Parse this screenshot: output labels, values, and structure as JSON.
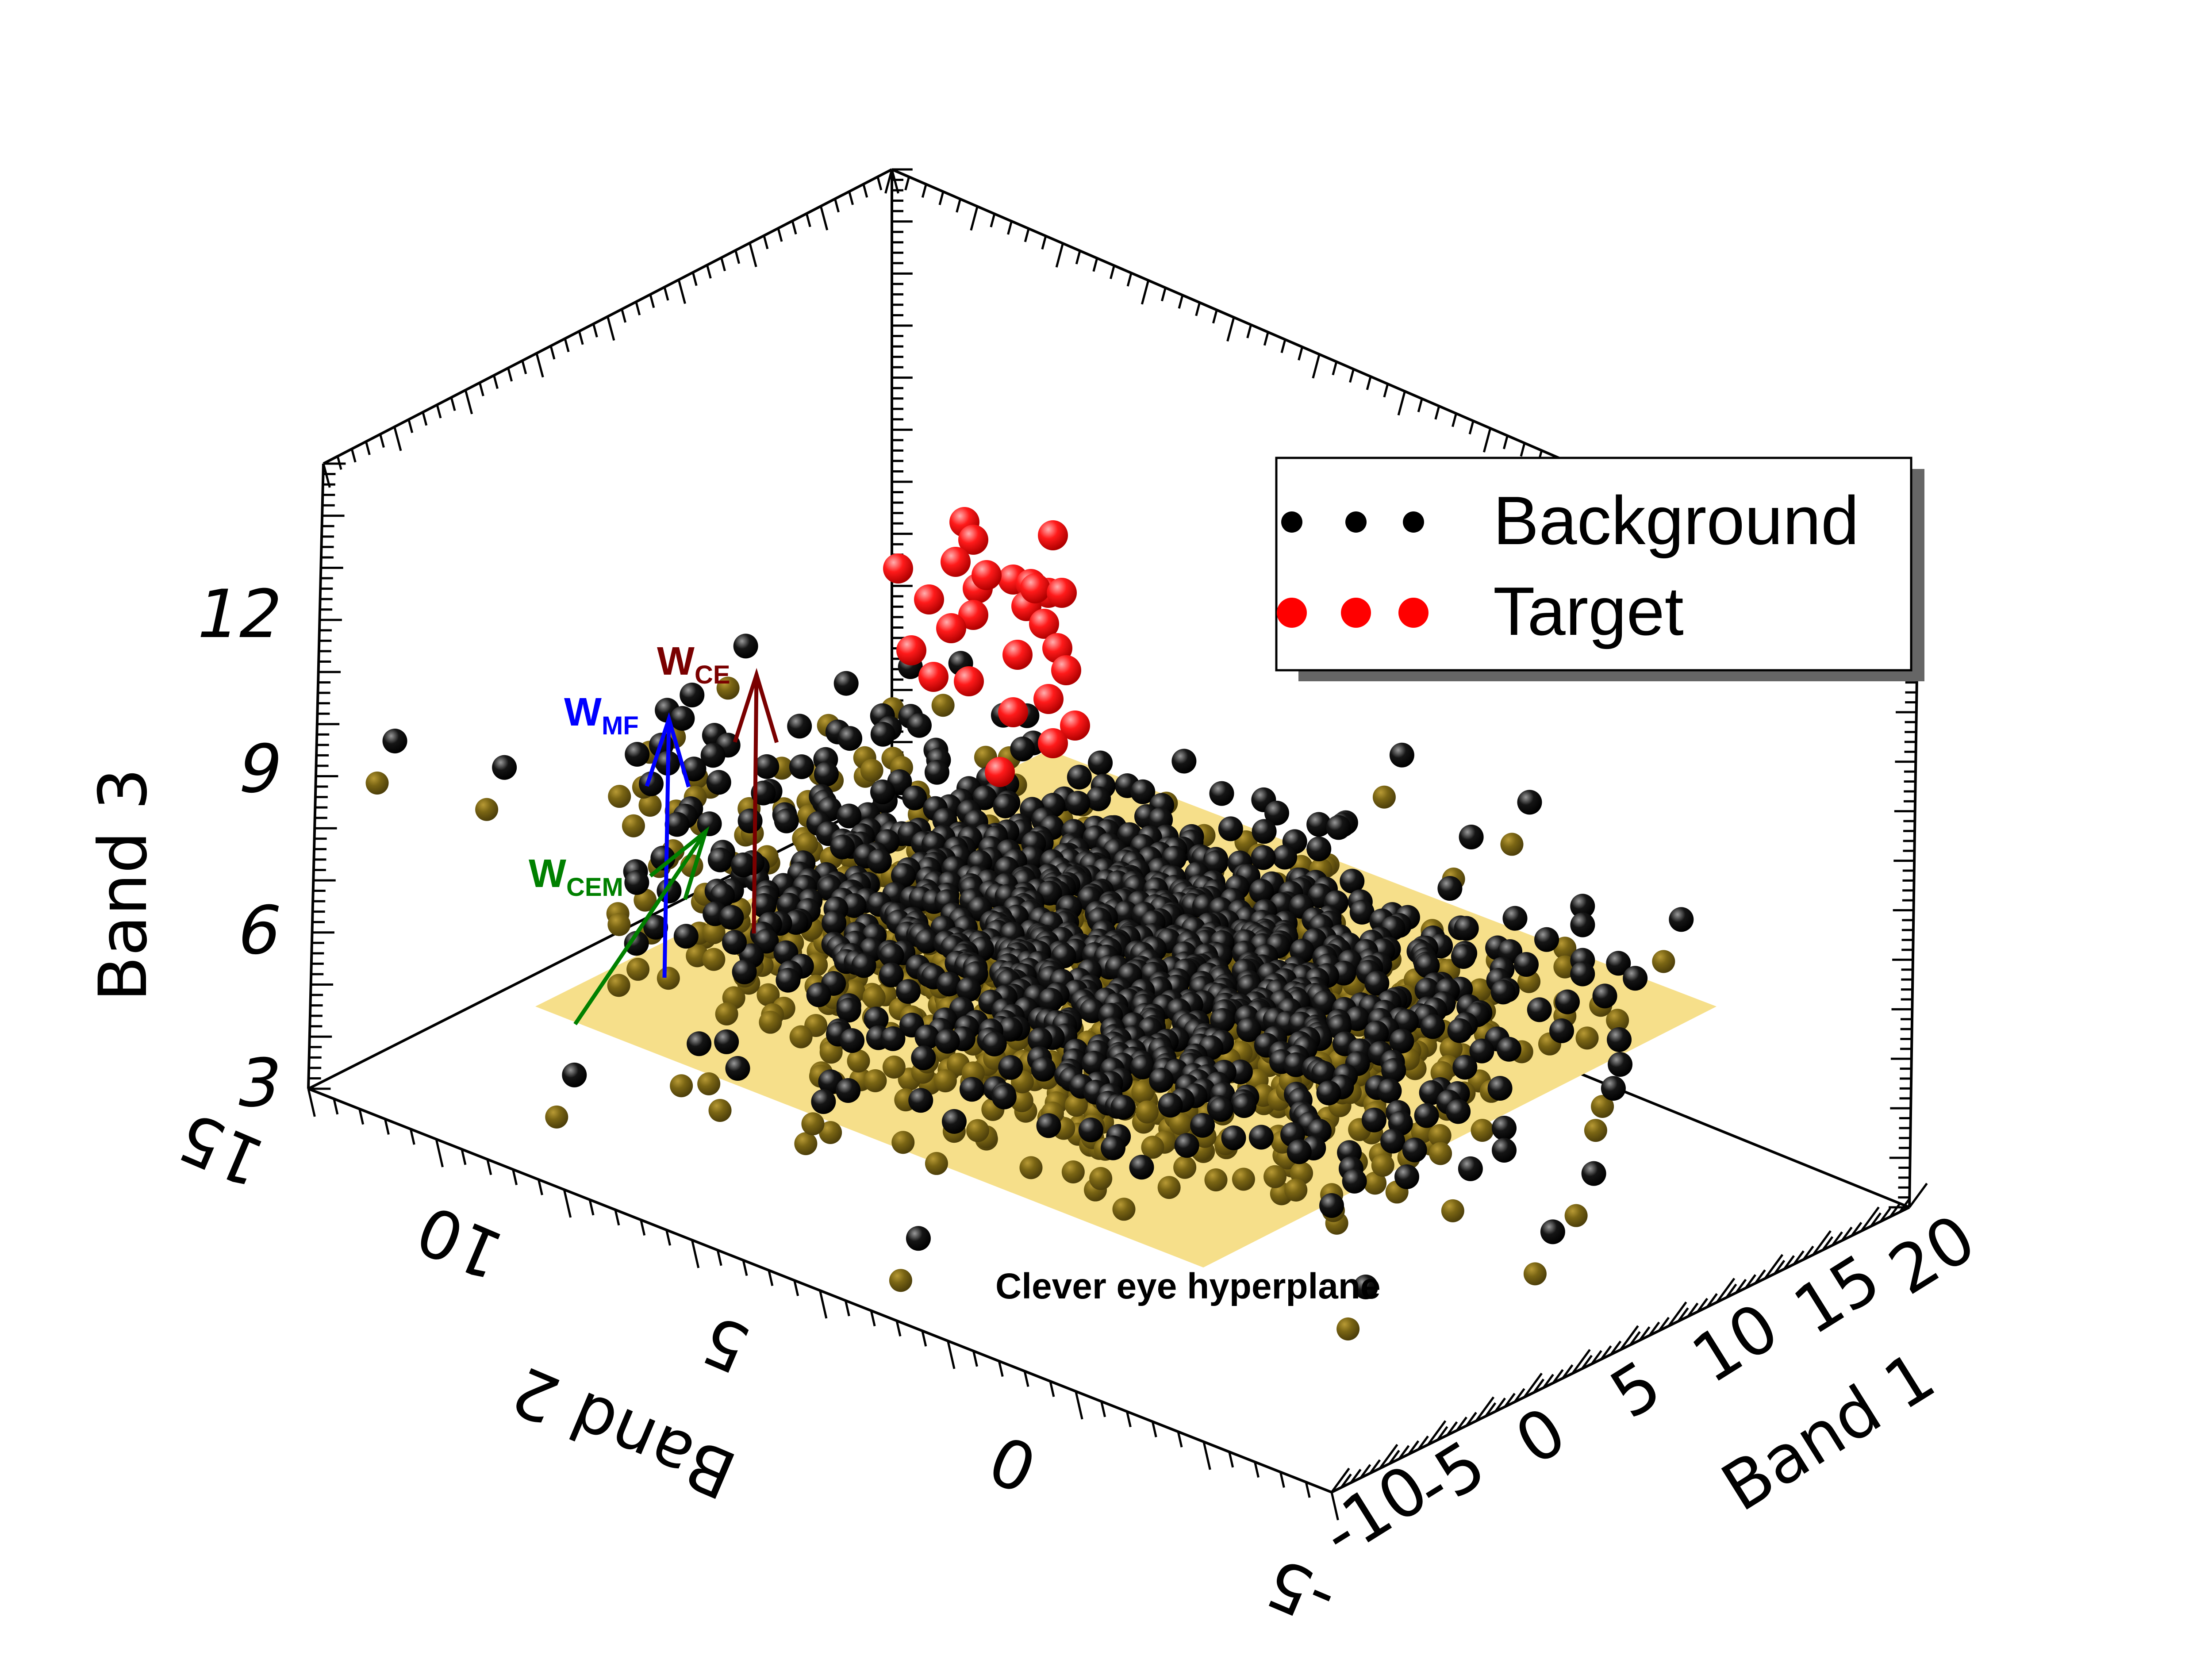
{
  "chart_data": {
    "type": "scatter",
    "dimensions": 3,
    "title": "",
    "axes": {
      "x": {
        "label": "Band 1",
        "range": [
          -10,
          20
        ],
        "ticks": [
          "-10",
          "-5",
          "0",
          "5",
          "10",
          "15",
          "20"
        ]
      },
      "y": {
        "label": "Band 2",
        "range": [
          -5,
          15
        ],
        "ticks": [
          "-5",
          "0",
          "5",
          "10",
          "15"
        ]
      },
      "z": {
        "label": "Band 3",
        "range": [
          3,
          14
        ],
        "ticks": [
          "3",
          "6",
          "9",
          "12"
        ]
      }
    },
    "legend": {
      "placement": "top-right",
      "entries": [
        {
          "label": "Background",
          "color": "#000000"
        },
        {
          "label": "Target",
          "color": "#ff0000"
        }
      ]
    },
    "series": [
      {
        "name": "Background",
        "color": "#000000",
        "shadow_color": "#7a6514",
        "count_approx": 1000,
        "center": [
          5,
          5,
          4.5
        ],
        "spread": [
          5.5,
          4.5,
          0.4
        ]
      },
      {
        "name": "Target",
        "color": "#ff0000",
        "count_approx": 30,
        "center": [
          0,
          5,
          11.5
        ],
        "spread": [
          1.5,
          1.2,
          1.6
        ]
      }
    ],
    "plane": {
      "label": "Clever eye hyperplane",
      "color": "#f6df8a",
      "z": 4
    },
    "vectors": [
      {
        "label": "W",
        "subscript": "MF",
        "color": "#0000ff"
      },
      {
        "label": "W",
        "subscript": "CE",
        "color": "#7a0000"
      },
      {
        "label": "W",
        "subscript": "CEM",
        "color": "#008000"
      }
    ]
  }
}
